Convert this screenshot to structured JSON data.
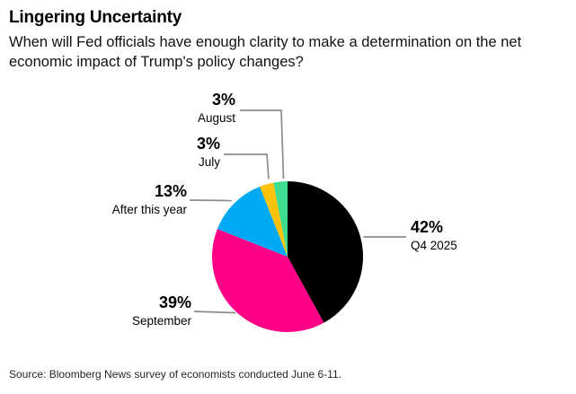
{
  "header": {
    "title": "Lingering Uncertainty",
    "subtitle_line1": "When will Fed officials have enough clarity to make a determination on the net",
    "subtitle_line2": "economic impact of Trump's policy changes?"
  },
  "chart_data": {
    "type": "pie",
    "title": "Lingering Uncertainty",
    "question": "When will Fed officials have enough clarity to make a determination on the net economic impact of Trump's policy changes?",
    "unit": "%",
    "start_angle_deg": 0,
    "direction": "clockwise",
    "slices": [
      {
        "label": "Q4 2025",
        "value": 42,
        "pct_label": "42%",
        "color": "#000000"
      },
      {
        "label": "September",
        "value": 39,
        "pct_label": "39%",
        "color": "#FF0087"
      },
      {
        "label": "After this year",
        "value": 13,
        "pct_label": "13%",
        "color": "#00A9F4"
      },
      {
        "label": "July",
        "value": 3,
        "pct_label": "3%",
        "color": "#FFC20A"
      },
      {
        "label": "August",
        "value": 3,
        "pct_label": "3%",
        "color": "#3EDC8E"
      }
    ],
    "leader_line_color": "#8C8C8C",
    "legend_position": "callouts",
    "grid": false
  },
  "footer": {
    "source": "Source: Bloomberg News survey of economists conducted June 6-11."
  }
}
